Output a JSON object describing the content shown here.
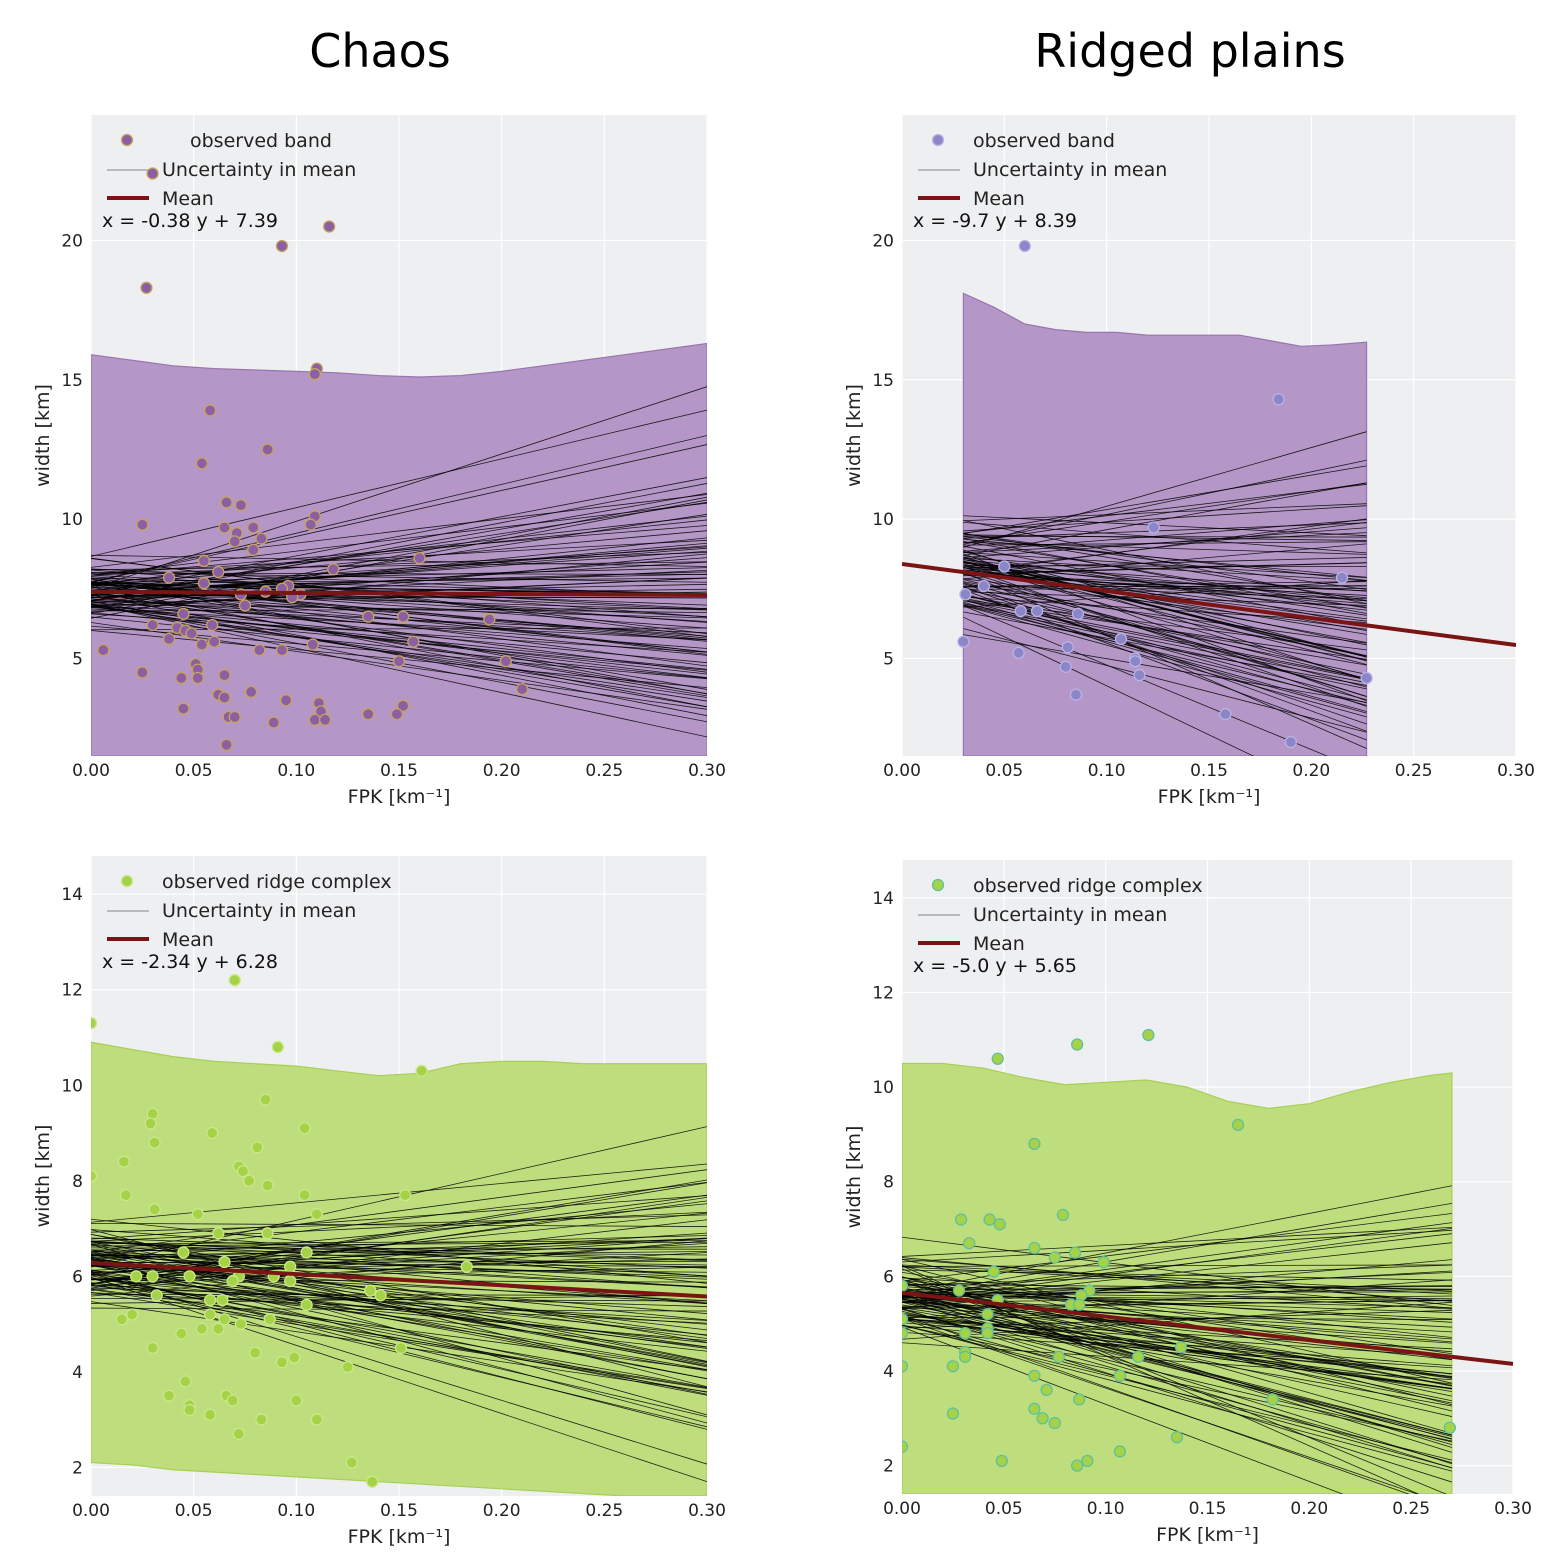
{
  "column_titles": [
    "Chaos",
    "Ridged plains"
  ],
  "colors": {
    "band_fill": "#b497c6",
    "band_edge": "#9a74b2",
    "band_point_chaos": "#8a5fa3",
    "band_point_chaos_edge": "#c8a35c",
    "band_point_plains": "#8a86c8",
    "ridge_fill": "#bede7e",
    "ridge_edge": "#a8cf55",
    "ridge_point": "#a6d248",
    "ridge_point_plains_edge": "#5fc0a0",
    "mean_line": "#7b1414",
    "uncertainty_line": "#000000",
    "plot_bg": "#eeeff1",
    "grid": "#ffffff"
  },
  "chart_data": [
    {
      "type": "scatter",
      "panel": "chaos-band",
      "xlabel": "FPK [km⁻¹]",
      "ylabel": "width [km]",
      "xlim": [
        0,
        0.3
      ],
      "ylim": [
        1.5,
        24.5
      ],
      "xticks": [
        "0.00",
        "0.05",
        "0.10",
        "0.15",
        "0.20",
        "0.25",
        "0.30"
      ],
      "yticks": [
        "5",
        "10",
        "15",
        "20"
      ],
      "legend": [
        "observed band",
        "Uncertainty in mean",
        "Mean"
      ],
      "equation": "x = -0.38 y + 7.39",
      "mean": {
        "intercept": 7.39,
        "slope": -0.38
      },
      "band": {
        "x": [
          0,
          0.02,
          0.04,
          0.06,
          0.08,
          0.1,
          0.12,
          0.14,
          0.16,
          0.18,
          0.2,
          0.22,
          0.24,
          0.26,
          0.28,
          0.3
        ],
        "upper": [
          15.9,
          15.7,
          15.5,
          15.4,
          15.35,
          15.3,
          15.25,
          15.15,
          15.1,
          15.15,
          15.3,
          15.5,
          15.7,
          15.9,
          16.1,
          16.3
        ],
        "lower": [
          1.5,
          1.5,
          1.5,
          1.5,
          1.5,
          1.5,
          1.5,
          1.5,
          1.5,
          1.5,
          1.5,
          1.5,
          1.5,
          1.5,
          1.5,
          1.5
        ]
      },
      "x_range_fit": [
        0,
        0.3
      ],
      "points": [
        [
          0.03,
          22.4
        ],
        [
          0.116,
          20.5
        ],
        [
          0.093,
          19.8
        ],
        [
          0.027,
          18.3
        ],
        [
          0.11,
          15.4
        ],
        [
          0.109,
          15.2
        ],
        [
          0.058,
          13.9
        ],
        [
          0.086,
          12.5
        ],
        [
          0.054,
          12.0
        ],
        [
          0.066,
          10.6
        ],
        [
          0.073,
          10.5
        ],
        [
          0.109,
          10.1
        ],
        [
          0.107,
          9.8
        ],
        [
          0.025,
          9.8
        ],
        [
          0.065,
          9.7
        ],
        [
          0.079,
          9.7
        ],
        [
          0.071,
          9.5
        ],
        [
          0.083,
          9.3
        ],
        [
          0.07,
          9.2
        ],
        [
          0.079,
          8.9
        ],
        [
          0.16,
          8.6
        ],
        [
          0.055,
          8.5
        ],
        [
          0.118,
          8.2
        ],
        [
          0.062,
          8.1
        ],
        [
          0.038,
          7.9
        ],
        [
          0.055,
          7.7
        ],
        [
          0.096,
          7.6
        ],
        [
          0.093,
          7.5
        ],
        [
          0.085,
          7.4
        ],
        [
          0.102,
          7.3
        ],
        [
          0.073,
          7.3
        ],
        [
          0.098,
          7.2
        ],
        [
          0.075,
          6.9
        ],
        [
          0.045,
          6.6
        ],
        [
          0.135,
          6.5
        ],
        [
          0.152,
          6.5
        ],
        [
          0.194,
          6.4
        ],
        [
          0.03,
          6.2
        ],
        [
          0.059,
          6.2
        ],
        [
          0.042,
          6.1
        ],
        [
          0.046,
          6.0
        ],
        [
          0.049,
          5.9
        ],
        [
          0.038,
          5.7
        ],
        [
          0.06,
          5.6
        ],
        [
          0.157,
          5.6
        ],
        [
          0.054,
          5.5
        ],
        [
          0.108,
          5.5
        ],
        [
          0.082,
          5.3
        ],
        [
          0.093,
          5.3
        ],
        [
          0.006,
          5.3
        ],
        [
          0.15,
          4.9
        ],
        [
          0.202,
          4.9
        ],
        [
          0.051,
          4.8
        ],
        [
          0.052,
          4.6
        ],
        [
          0.025,
          4.5
        ],
        [
          0.044,
          4.3
        ],
        [
          0.052,
          4.3
        ],
        [
          0.065,
          4.4
        ],
        [
          0.21,
          3.9
        ],
        [
          0.078,
          3.8
        ],
        [
          0.062,
          3.7
        ],
        [
          0.065,
          3.6
        ],
        [
          0.095,
          3.5
        ],
        [
          0.111,
          3.4
        ],
        [
          0.152,
          3.3
        ],
        [
          0.045,
          3.2
        ],
        [
          0.112,
          3.1
        ],
        [
          0.135,
          3.0
        ],
        [
          0.149,
          3.0
        ],
        [
          0.067,
          2.9
        ],
        [
          0.07,
          2.9
        ],
        [
          0.109,
          2.8
        ],
        [
          0.114,
          2.8
        ],
        [
          0.089,
          2.7
        ],
        [
          0.066,
          1.9
        ]
      ]
    },
    {
      "type": "scatter",
      "panel": "plains-band",
      "xlabel": "FPK [km⁻¹]",
      "ylabel": "width [km]",
      "xlim": [
        0,
        0.3
      ],
      "ylim": [
        1.5,
        24.5
      ],
      "xticks": [
        "0.00",
        "0.05",
        "0.10",
        "0.15",
        "0.20",
        "0.25",
        "0.30"
      ],
      "yticks": [
        "5",
        "10",
        "15",
        "20"
      ],
      "legend": [
        "observed band",
        "Uncertainty in mean",
        "Mean"
      ],
      "equation": "x = -9.7 y + 8.39",
      "mean": {
        "intercept": 8.39,
        "slope": -9.7
      },
      "band": {
        "x": [
          0.03,
          0.045,
          0.06,
          0.075,
          0.09,
          0.105,
          0.12,
          0.135,
          0.15,
          0.165,
          0.18,
          0.195,
          0.21,
          0.227
        ],
        "upper": [
          18.1,
          17.6,
          17.0,
          16.8,
          16.7,
          16.7,
          16.6,
          16.6,
          16.6,
          16.6,
          16.4,
          16.2,
          16.25,
          16.35
        ],
        "lower": [
          1.5,
          1.5,
          1.5,
          1.5,
          1.5,
          1.5,
          1.5,
          1.5,
          1.5,
          1.5,
          1.5,
          1.5,
          1.5,
          1.5
        ]
      },
      "x_range_fit": [
        0.03,
        0.227
      ],
      "points": [
        [
          0.06,
          19.8
        ],
        [
          0.184,
          14.3
        ],
        [
          0.123,
          9.7
        ],
        [
          0.215,
          7.9
        ],
        [
          0.05,
          8.3
        ],
        [
          0.04,
          7.6
        ],
        [
          0.031,
          7.3
        ],
        [
          0.058,
          6.7
        ],
        [
          0.066,
          6.7
        ],
        [
          0.086,
          6.6
        ],
        [
          0.107,
          5.7
        ],
        [
          0.03,
          5.6
        ],
        [
          0.081,
          5.4
        ],
        [
          0.057,
          5.2
        ],
        [
          0.114,
          5.0
        ],
        [
          0.114,
          4.9
        ],
        [
          0.08,
          4.7
        ],
        [
          0.116,
          4.4
        ],
        [
          0.227,
          4.3
        ],
        [
          0.085,
          3.7
        ],
        [
          0.158,
          3.0
        ],
        [
          0.19,
          2.0
        ]
      ]
    },
    {
      "type": "scatter",
      "panel": "chaos-ridge",
      "xlabel": "FPK [km⁻¹]",
      "ylabel": "width [km]",
      "xlim": [
        0,
        0.3
      ],
      "ylim": [
        1.4,
        14.8
      ],
      "xticks": [
        "0.00",
        "0.05",
        "0.10",
        "0.15",
        "0.20",
        "0.25",
        "0.30"
      ],
      "yticks": [
        "2",
        "4",
        "6",
        "8",
        "10",
        "12",
        "14"
      ],
      "legend": [
        "observed ridge complex",
        "Uncertainty in mean",
        "Mean"
      ],
      "equation": "x = -2.34 y + 6.28",
      "mean": {
        "intercept": 6.28,
        "slope": -2.34
      },
      "band": {
        "x": [
          0,
          0.02,
          0.04,
          0.06,
          0.08,
          0.1,
          0.12,
          0.14,
          0.16,
          0.18,
          0.2,
          0.22,
          0.24,
          0.26,
          0.28,
          0.3
        ],
        "upper": [
          10.9,
          10.75,
          10.6,
          10.5,
          10.45,
          10.4,
          10.3,
          10.2,
          10.25,
          10.45,
          10.5,
          10.5,
          10.45,
          10.45,
          10.45,
          10.45
        ],
        "lower": [
          2.1,
          2.05,
          1.95,
          1.9,
          1.85,
          1.8,
          1.75,
          1.7,
          1.65,
          1.6,
          1.55,
          1.5,
          1.45,
          1.4,
          1.4,
          1.4
        ]
      },
      "x_range_fit": [
        0,
        0.3
      ],
      "points": [
        [
          0.07,
          12.2
        ],
        [
          0.0,
          11.3
        ],
        [
          0.091,
          10.8
        ],
        [
          0.161,
          10.3
        ],
        [
          0.085,
          9.7
        ],
        [
          0.03,
          9.4
        ],
        [
          0.029,
          9.2
        ],
        [
          0.104,
          9.1
        ],
        [
          0.059,
          9.0
        ],
        [
          0.031,
          8.8
        ],
        [
          0.081,
          8.7
        ],
        [
          0.016,
          8.4
        ],
        [
          0.072,
          8.3
        ],
        [
          0.074,
          8.2
        ],
        [
          0.077,
          8.0
        ],
        [
          0.0,
          8.1
        ],
        [
          0.086,
          7.9
        ],
        [
          0.017,
          7.7
        ],
        [
          0.104,
          7.7
        ],
        [
          0.153,
          7.7
        ],
        [
          0.031,
          7.4
        ],
        [
          0.11,
          7.3
        ],
        [
          0.052,
          7.3
        ],
        [
          0.062,
          6.9
        ],
        [
          0.086,
          6.9
        ],
        [
          0.045,
          6.5
        ],
        [
          0.105,
          6.5
        ],
        [
          0.183,
          6.2
        ],
        [
          0.065,
          6.3
        ],
        [
          0.097,
          6.2
        ],
        [
          0.022,
          6.0
        ],
        [
          0.03,
          6.0
        ],
        [
          0.048,
          6.0
        ],
        [
          0.072,
          6.0
        ],
        [
          0.089,
          6.0
        ],
        [
          0.097,
          5.9
        ],
        [
          0.069,
          5.9
        ],
        [
          0.136,
          5.7
        ],
        [
          0.141,
          5.6
        ],
        [
          0.032,
          5.6
        ],
        [
          0.058,
          5.5
        ],
        [
          0.064,
          5.5
        ],
        [
          0.105,
          5.4
        ],
        [
          0.058,
          5.2
        ],
        [
          0.065,
          5.1
        ],
        [
          0.087,
          5.1
        ],
        [
          0.015,
          5.1
        ],
        [
          0.054,
          4.9
        ],
        [
          0.062,
          4.9
        ],
        [
          0.02,
          5.2
        ],
        [
          0.073,
          5.0
        ],
        [
          0.044,
          4.8
        ],
        [
          0.151,
          4.5
        ],
        [
          0.03,
          4.5
        ],
        [
          0.08,
          4.4
        ],
        [
          0.093,
          4.2
        ],
        [
          0.099,
          4.3
        ],
        [
          0.125,
          4.1
        ],
        [
          0.046,
          3.8
        ],
        [
          0.038,
          3.5
        ],
        [
          0.066,
          3.5
        ],
        [
          0.069,
          3.4
        ],
        [
          0.1,
          3.4
        ],
        [
          0.048,
          3.3
        ],
        [
          0.048,
          3.2
        ],
        [
          0.058,
          3.1
        ],
        [
          0.083,
          3.0
        ],
        [
          0.11,
          3.0
        ],
        [
          0.072,
          2.7
        ],
        [
          0.127,
          2.1
        ],
        [
          0.137,
          1.7
        ]
      ]
    },
    {
      "type": "scatter",
      "panel": "plains-ridge",
      "xlabel": "FPK [km⁻¹]",
      "ylabel": "width [km]",
      "xlim": [
        0,
        0.3
      ],
      "ylim": [
        1.4,
        14.8
      ],
      "xticks": [
        "0.00",
        "0.05",
        "0.10",
        "0.15",
        "0.20",
        "0.25",
        "0.30"
      ],
      "yticks": [
        "2",
        "4",
        "6",
        "8",
        "10",
        "12",
        "14"
      ],
      "legend": [
        "observed ridge complex",
        "Uncertainty in mean",
        "Mean"
      ],
      "equation": "x = -5.0 y + 5.65",
      "mean": {
        "intercept": 5.65,
        "slope": -5.0
      },
      "band": {
        "x": [
          0,
          0.02,
          0.04,
          0.06,
          0.08,
          0.1,
          0.12,
          0.14,
          0.16,
          0.18,
          0.2,
          0.22,
          0.24,
          0.26,
          0.27
        ],
        "upper": [
          10.5,
          10.5,
          10.4,
          10.2,
          10.05,
          10.1,
          10.15,
          10.0,
          9.7,
          9.55,
          9.65,
          9.9,
          10.1,
          10.25,
          10.3
        ],
        "lower": [
          1.4,
          1.4,
          1.4,
          1.4,
          1.4,
          1.4,
          1.4,
          1.4,
          1.4,
          1.4,
          1.4,
          1.4,
          1.4,
          1.4,
          1.4
        ]
      },
      "x_range_fit": [
        0,
        0.27
      ],
      "points": [
        [
          0.121,
          11.1
        ],
        [
          0.086,
          10.9
        ],
        [
          0.047,
          10.6
        ],
        [
          0.165,
          9.2
        ],
        [
          0.065,
          8.8
        ],
        [
          0.079,
          7.3
        ],
        [
          0.029,
          7.2
        ],
        [
          0.043,
          7.2
        ],
        [
          0.048,
          7.1
        ],
        [
          0.033,
          6.7
        ],
        [
          0.065,
          6.6
        ],
        [
          0.085,
          6.5
        ],
        [
          0.075,
          6.4
        ],
        [
          0.099,
          6.3
        ],
        [
          0.045,
          6.1
        ],
        [
          0.0,
          5.8
        ],
        [
          0.028,
          5.7
        ],
        [
          0.047,
          5.5
        ],
        [
          0.092,
          5.7
        ],
        [
          0.088,
          5.6
        ],
        [
          0.083,
          5.4
        ],
        [
          0.087,
          5.4
        ],
        [
          0.042,
          5.2
        ],
        [
          0.0,
          5.1
        ],
        [
          0.042,
          4.9
        ],
        [
          0.042,
          4.8
        ],
        [
          0.031,
          4.8
        ],
        [
          0.0,
          4.8
        ],
        [
          0.137,
          4.5
        ],
        [
          0.031,
          4.4
        ],
        [
          0.077,
          4.3
        ],
        [
          0.116,
          4.3
        ],
        [
          0.031,
          4.3
        ],
        [
          0.025,
          4.1
        ],
        [
          0.0,
          4.1
        ],
        [
          0.107,
          3.9
        ],
        [
          0.065,
          3.9
        ],
        [
          0.071,
          3.6
        ],
        [
          0.087,
          3.4
        ],
        [
          0.182,
          3.4
        ],
        [
          0.025,
          3.1
        ],
        [
          0.065,
          3.2
        ],
        [
          0.069,
          3.0
        ],
        [
          0.075,
          2.9
        ],
        [
          0.269,
          2.8
        ],
        [
          0.135,
          2.6
        ],
        [
          0.0,
          2.4
        ],
        [
          0.107,
          2.3
        ],
        [
          0.049,
          2.1
        ],
        [
          0.091,
          2.1
        ],
        [
          0.086,
          2.0
        ]
      ]
    }
  ]
}
